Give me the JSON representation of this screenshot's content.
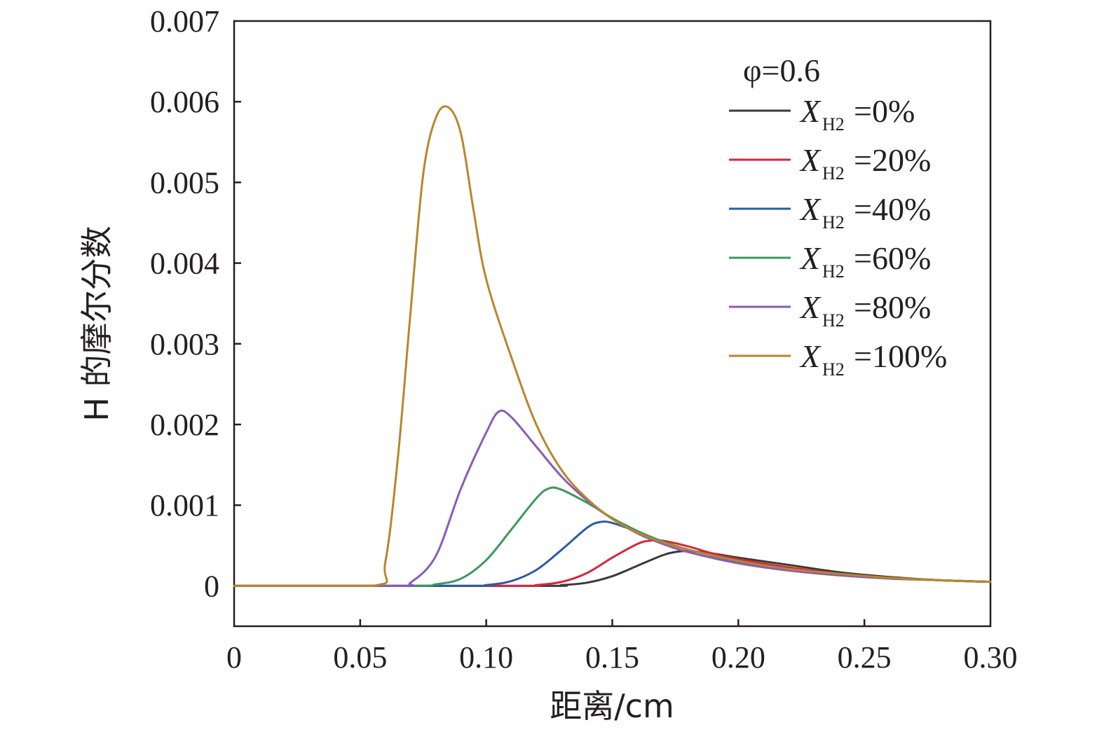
{
  "chart_data": {
    "type": "line",
    "xlabel": "距离/cm",
    "ylabel": "H 的摩尔分数",
    "xlim": [
      0,
      0.3
    ],
    "ylim": [
      -0.0005,
      0.007
    ],
    "x_ticks": [
      "0",
      "0.05",
      "0.10",
      "0.15",
      "0.20",
      "0.25",
      "0.30"
    ],
    "x_tick_values": [
      0,
      0.05,
      0.1,
      0.15,
      0.2,
      0.25,
      0.3
    ],
    "y_ticks": [
      "0",
      "0.001",
      "0.002",
      "0.003",
      "0.004",
      "0.005",
      "0.006",
      "0.007"
    ],
    "y_tick_values": [
      0,
      0.001,
      0.002,
      0.003,
      0.004,
      0.005,
      0.006,
      0.007
    ],
    "grid": false,
    "legend_position": "top-right",
    "legend_title": "φ=0.6",
    "series": [
      {
        "name": "X_H2=0%",
        "label_var": "X",
        "label_sub": "H2",
        "label_value": "=0%",
        "color": "#3a3a3a",
        "x": [
          0,
          0.12,
          0.13,
          0.14,
          0.15,
          0.16,
          0.17,
          0.175,
          0.18,
          0.19,
          0.2,
          0.22,
          0.24,
          0.26,
          0.28,
          0.3
        ],
        "y": [
          0,
          0,
          1e-05,
          4e-05,
          0.00012,
          0.00025,
          0.00038,
          0.00042,
          0.00043,
          0.0004,
          0.00035,
          0.00026,
          0.00017,
          0.00011,
          7e-05,
          5e-05
        ]
      },
      {
        "name": "X_H2=20%",
        "label_var": "X",
        "label_sub": "H2",
        "label_value": "=20%",
        "color": "#d7263d",
        "x": [
          0,
          0.11,
          0.12,
          0.13,
          0.14,
          0.15,
          0.16,
          0.165,
          0.17,
          0.18,
          0.19,
          0.2,
          0.22,
          0.24,
          0.26,
          0.28,
          0.3
        ],
        "y": [
          0,
          0,
          1e-05,
          5e-05,
          0.00016,
          0.00035,
          0.00052,
          0.00056,
          0.00056,
          0.00049,
          0.0004,
          0.00033,
          0.00023,
          0.00015,
          0.0001,
          7e-05,
          5e-05
        ]
      },
      {
        "name": "X_H2=40%",
        "label_var": "X",
        "label_sub": "H2",
        "label_value": "=40%",
        "color": "#2b5aa8",
        "x": [
          0,
          0.09,
          0.1,
          0.11,
          0.12,
          0.13,
          0.14,
          0.145,
          0.15,
          0.16,
          0.17,
          0.18,
          0.2,
          0.22,
          0.24,
          0.26,
          0.28,
          0.3
        ],
        "y": [
          0,
          0,
          1e-05,
          6e-05,
          0.0002,
          0.00045,
          0.00072,
          0.00079,
          0.00078,
          0.00067,
          0.00055,
          0.00045,
          0.00031,
          0.00021,
          0.00014,
          0.0001,
          7e-05,
          5e-05
        ]
      },
      {
        "name": "X_H2=60%",
        "label_var": "X",
        "label_sub": "H2",
        "label_value": "=60%",
        "color": "#3a9a5b",
        "x": [
          0,
          0.07,
          0.08,
          0.09,
          0.1,
          0.11,
          0.12,
          0.125,
          0.13,
          0.14,
          0.15,
          0.16,
          0.17,
          0.18,
          0.2,
          0.22,
          0.24,
          0.26,
          0.28,
          0.3
        ],
        "y": [
          0,
          0,
          2e-05,
          9e-05,
          0.00032,
          0.0007,
          0.00109,
          0.00121,
          0.00119,
          0.00103,
          0.00084,
          0.00068,
          0.00055,
          0.00045,
          0.0003,
          0.0002,
          0.00014,
          0.0001,
          7e-05,
          5e-05
        ]
      },
      {
        "name": "X_H2=80%",
        "label_var": "X",
        "label_sub": "H2",
        "label_value": "=80%",
        "color": "#8a5bb8",
        "x": [
          0,
          0.065,
          0.07,
          0.08,
          0.09,
          0.1,
          0.105,
          0.11,
          0.12,
          0.13,
          0.14,
          0.15,
          0.16,
          0.17,
          0.18,
          0.2,
          0.22,
          0.24,
          0.26,
          0.28,
          0.3
        ],
        "y": [
          0,
          0,
          4e-05,
          0.00037,
          0.00121,
          0.0019,
          0.00216,
          0.00209,
          0.00172,
          0.00135,
          0.00106,
          0.00083,
          0.00065,
          0.00052,
          0.00042,
          0.00028,
          0.00019,
          0.00013,
          9e-05,
          7e-05,
          5e-05
        ]
      },
      {
        "name": "X_H2=100%",
        "label_var": "X",
        "label_sub": "H2",
        "label_value": "=100%",
        "color": "#b8862b",
        "x": [
          0,
          0.055,
          0.06,
          0.065,
          0.07,
          0.075,
          0.08,
          0.085,
          0.09,
          0.095,
          0.1,
          0.11,
          0.12,
          0.13,
          0.14,
          0.15,
          0.16,
          0.17,
          0.18,
          0.2,
          0.22,
          0.24,
          0.26,
          0.28,
          0.3
        ],
        "y": [
          0,
          0,
          0.0003,
          0.0016,
          0.0034,
          0.0051,
          0.0058,
          0.00593,
          0.0056,
          0.00465,
          0.0038,
          0.00283,
          0.00199,
          0.00143,
          0.00108,
          0.00083,
          0.00066,
          0.00054,
          0.00045,
          0.00031,
          0.00021,
          0.00015,
          0.0001,
          7e-05,
          5e-05
        ]
      }
    ]
  }
}
